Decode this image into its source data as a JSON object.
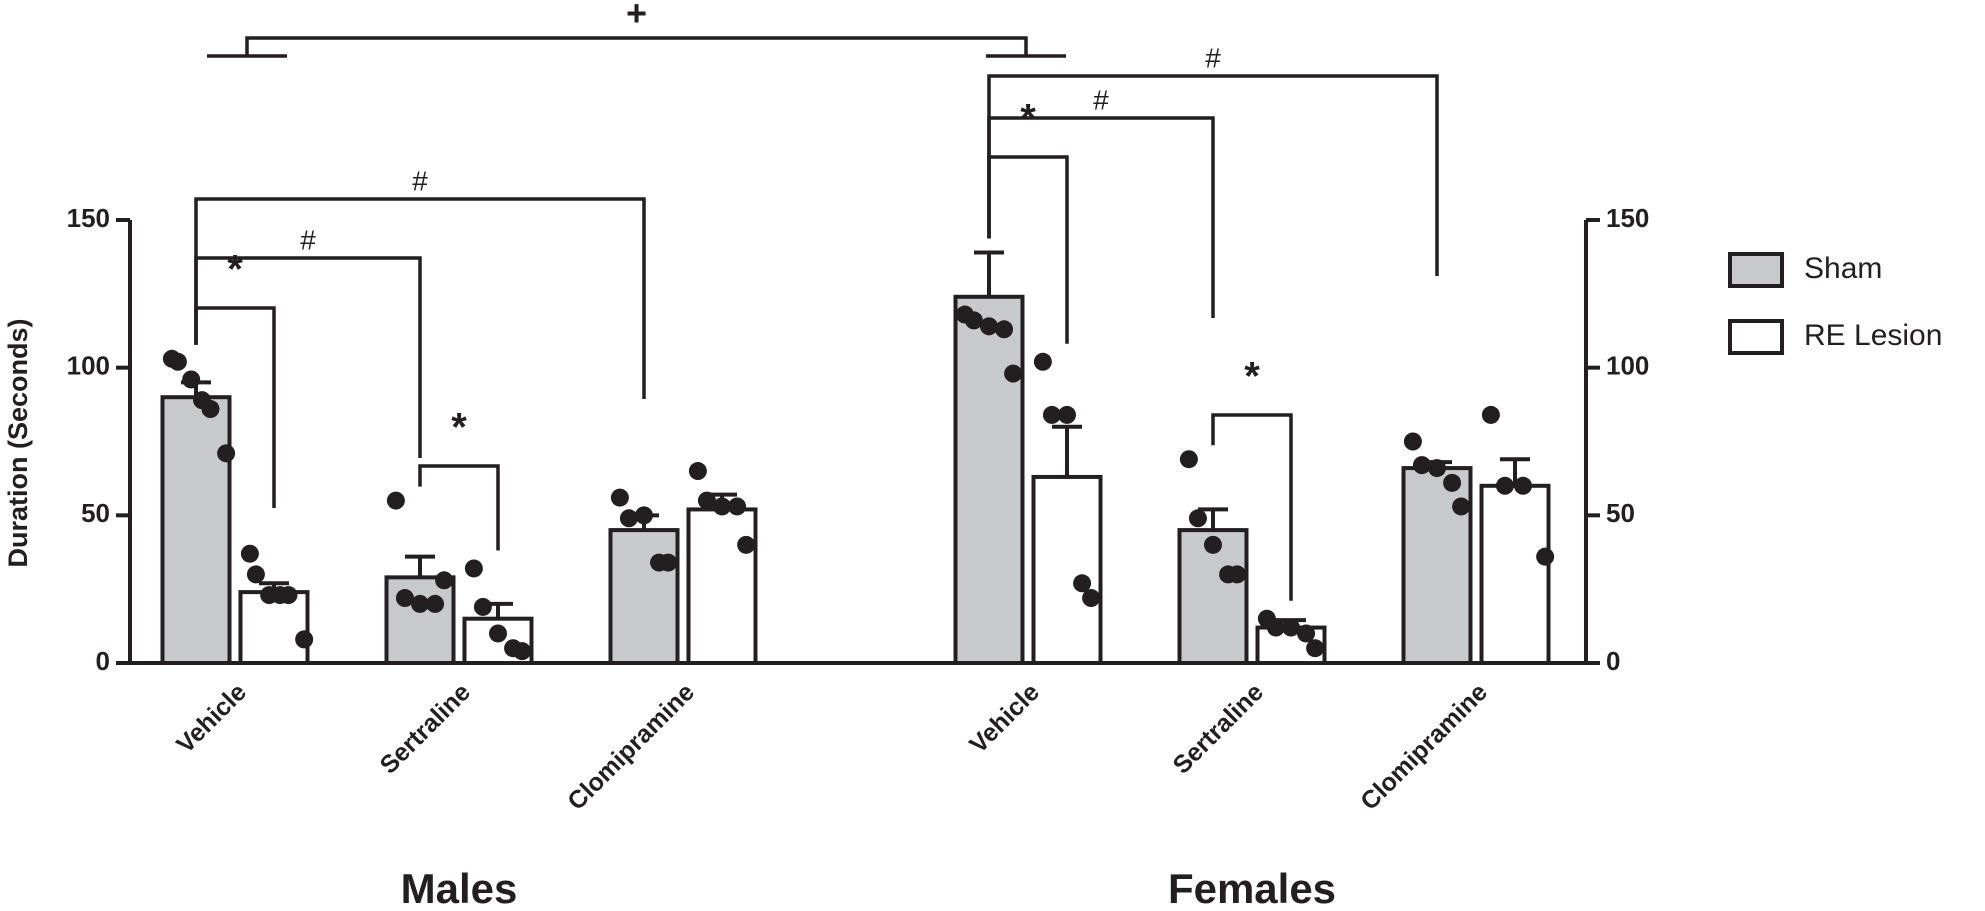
{
  "chart_data": {
    "type": "bar",
    "y_label": "Duration (Seconds)",
    "groups": [
      "Males",
      "Females"
    ],
    "categories": [
      "Vehicle",
      "Sertraline",
      "Clomipramine",
      "Vehicle",
      "Sertraline",
      "Clomipramine"
    ],
    "ylim": [
      0,
      150
    ],
    "yticks": [
      0,
      50,
      100,
      150
    ],
    "right_axis": true,
    "series": [
      {
        "name": "Sham",
        "color": "#c8c9cb",
        "values": [
          90,
          29,
          45,
          124,
          45,
          66
        ],
        "errors": [
          5,
          7,
          5,
          15,
          7,
          2
        ],
        "points": [
          [
            103,
            102,
            96,
            89,
            86,
            71
          ],
          [
            55,
            22,
            20,
            20,
            28
          ],
          [
            56,
            49,
            50,
            34,
            34
          ],
          [
            118,
            116,
            114,
            113,
            98
          ],
          [
            69,
            49,
            40,
            30,
            30
          ],
          [
            75,
            67,
            66,
            61,
            53
          ]
        ]
      },
      {
        "name": "RE Lesion",
        "color": "#ffffff",
        "values": [
          24,
          15,
          52,
          63,
          12,
          60
        ],
        "errors": [
          3,
          5,
          5,
          17,
          2.5,
          9
        ],
        "points": [
          [
            37,
            30,
            23,
            23,
            23,
            8
          ],
          [
            32,
            19,
            10,
            5,
            4
          ],
          [
            65,
            55,
            53,
            53,
            40
          ],
          [
            102,
            84,
            84,
            27,
            22
          ],
          [
            15,
            12,
            12,
            10,
            5
          ],
          [
            84,
            60,
            60,
            36
          ]
        ]
      }
    ],
    "annotations": [
      {
        "text": "*",
        "from": [
          0,
          0
        ],
        "to": [
          1,
          0
        ]
      },
      {
        "text": "#",
        "from": [
          0,
          0
        ],
        "to": [
          0,
          1
        ]
      },
      {
        "text": "#",
        "from": [
          0,
          0
        ],
        "to": [
          0,
          2
        ]
      },
      {
        "text": "*",
        "from": [
          0,
          1
        ],
        "to": [
          1,
          1
        ]
      },
      {
        "text": "*",
        "from": [
          0,
          3
        ],
        "to": [
          1,
          3
        ]
      },
      {
        "text": "#",
        "from": [
          0,
          3
        ],
        "to": [
          0,
          4
        ]
      },
      {
        "text": "#",
        "from": [
          0,
          3
        ],
        "to": [
          0,
          5
        ]
      },
      {
        "text": "*",
        "from": [
          0,
          4
        ],
        "to": [
          1,
          4
        ]
      },
      {
        "text": "+",
        "from_group": 0,
        "to_group": 1
      }
    ]
  }
}
